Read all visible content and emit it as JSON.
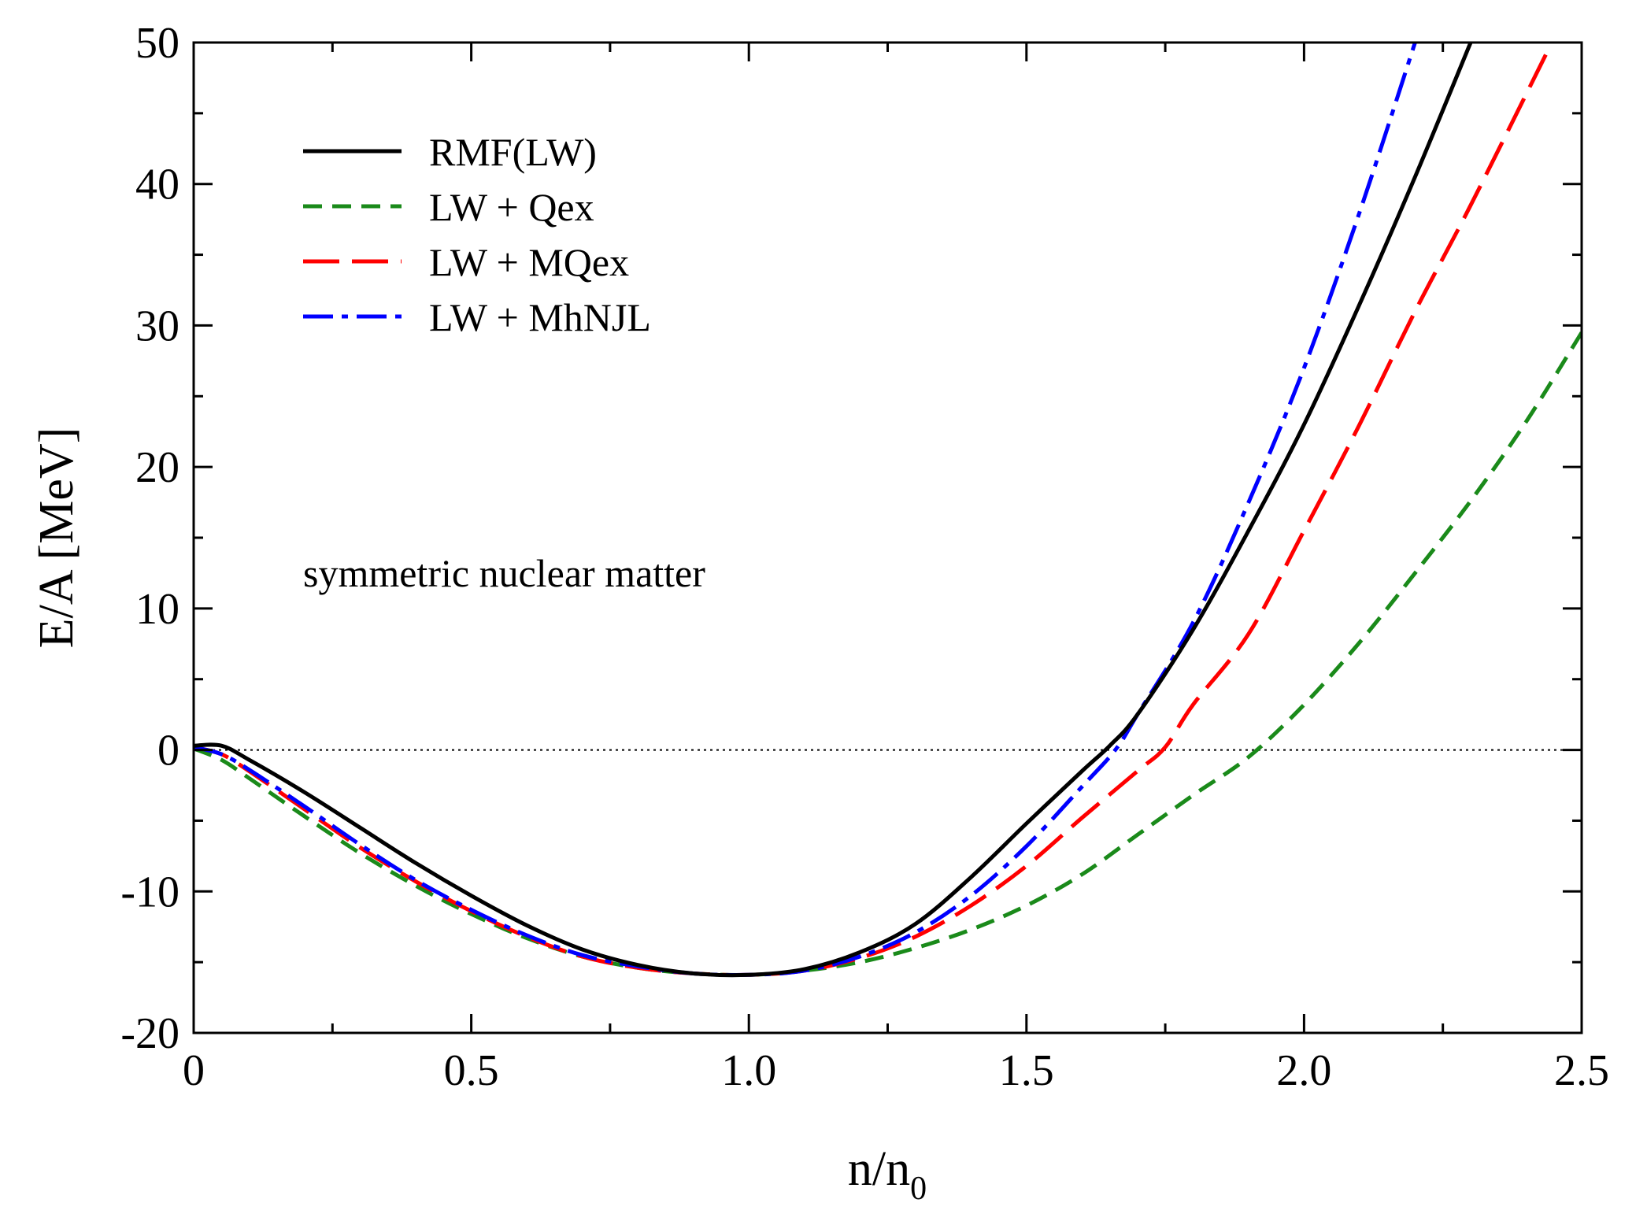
{
  "chart_data": {
    "type": "line",
    "title": "",
    "xlabel_main": "n/n",
    "xlabel_sub": "0",
    "ylabel": "E/A [MeV]",
    "xlim": [
      0,
      2.5
    ],
    "ylim": [
      -20,
      50
    ],
    "x_ticks": [
      0,
      0.5,
      1.0,
      1.5,
      2.0,
      2.5
    ],
    "x_tick_labels": [
      "0",
      "0.5",
      "1.0",
      "1.5",
      "2.0",
      "2.5"
    ],
    "x_minor_step": 0.25,
    "y_ticks": [
      -20,
      -10,
      0,
      10,
      20,
      30,
      40,
      50
    ],
    "y_tick_labels": [
      "-20",
      "-10",
      "0",
      "10",
      "20",
      "30",
      "40",
      "50"
    ],
    "y_minor_step": 5,
    "annotation": "symmetric nuclear matter",
    "reference_line": {
      "y": 0,
      "style": "dotted",
      "color": "#000000"
    },
    "legend_position": "top-left",
    "series": [
      {
        "name": "RMF(LW)",
        "color": "#000000",
        "dash": "solid",
        "x": [
          0,
          0.05,
          0.1,
          0.2,
          0.3,
          0.4,
          0.5,
          0.6,
          0.7,
          0.8,
          0.9,
          1.0,
          1.1,
          1.2,
          1.3,
          1.4,
          1.5,
          1.6,
          1.65,
          1.7,
          1.8,
          1.9,
          2.0,
          2.1,
          2.2,
          2.3
        ],
        "y": [
          0.3,
          0.3,
          -0.7,
          -3.0,
          -5.5,
          -8.0,
          -10.3,
          -12.4,
          -14.1,
          -15.2,
          -15.8,
          -15.9,
          -15.5,
          -14.3,
          -12.3,
          -9.0,
          -5.2,
          -1.5,
          0.3,
          2.5,
          8.5,
          15.5,
          23.0,
          31.5,
          40.5,
          50.0
        ]
      },
      {
        "name": "LW + Qex",
        "color": "#1a8a1a",
        "dash": "dashed",
        "x": [
          0,
          0.05,
          0.1,
          0.2,
          0.3,
          0.4,
          0.5,
          0.6,
          0.7,
          0.8,
          0.9,
          1.0,
          1.1,
          1.2,
          1.3,
          1.4,
          1.5,
          1.6,
          1.7,
          1.8,
          1.9,
          2.0,
          2.1,
          2.2,
          2.3,
          2.4,
          2.5
        ],
        "y": [
          0.1,
          -0.7,
          -2.0,
          -4.7,
          -7.3,
          -9.6,
          -11.6,
          -13.3,
          -14.6,
          -15.4,
          -15.8,
          -15.9,
          -15.6,
          -15.0,
          -14.0,
          -12.7,
          -11.0,
          -8.8,
          -6.0,
          -3.2,
          -0.5,
          3.2,
          7.6,
          12.5,
          17.6,
          23.2,
          29.5
        ]
      },
      {
        "name": "LW + MQex",
        "color": "#ff0000",
        "dash": "longdash",
        "x": [
          0,
          0.05,
          0.1,
          0.2,
          0.3,
          0.4,
          0.5,
          0.6,
          0.7,
          0.8,
          0.9,
          1.0,
          1.1,
          1.2,
          1.3,
          1.4,
          1.5,
          1.6,
          1.7,
          1.75,
          1.8,
          1.9,
          2.0,
          2.1,
          2.2,
          2.3,
          2.44
        ],
        "y": [
          0.2,
          -0.3,
          -1.5,
          -4.2,
          -6.9,
          -9.3,
          -11.4,
          -13.2,
          -14.6,
          -15.4,
          -15.8,
          -15.9,
          -15.6,
          -14.7,
          -13.2,
          -11.0,
          -8.2,
          -4.8,
          -1.5,
          0.2,
          3.2,
          8.2,
          15.5,
          23.0,
          31.0,
          38.5,
          49.5
        ]
      },
      {
        "name": "LW + MhNJL",
        "color": "#0000ff",
        "dash": "dashdot",
        "x": [
          0,
          0.05,
          0.1,
          0.2,
          0.3,
          0.4,
          0.5,
          0.6,
          0.7,
          0.8,
          0.9,
          1.0,
          1.1,
          1.2,
          1.3,
          1.4,
          1.5,
          1.6,
          1.66,
          1.7,
          1.8,
          1.9,
          2.0,
          2.1,
          2.2
        ],
        "y": [
          0.2,
          -0.3,
          -1.4,
          -4.0,
          -6.7,
          -9.2,
          -11.3,
          -13.1,
          -14.5,
          -15.3,
          -15.8,
          -15.9,
          -15.6,
          -14.6,
          -12.9,
          -10.3,
          -6.8,
          -2.6,
          0.0,
          2.5,
          9.0,
          17.5,
          27.0,
          38.0,
          50.0
        ]
      }
    ]
  }
}
